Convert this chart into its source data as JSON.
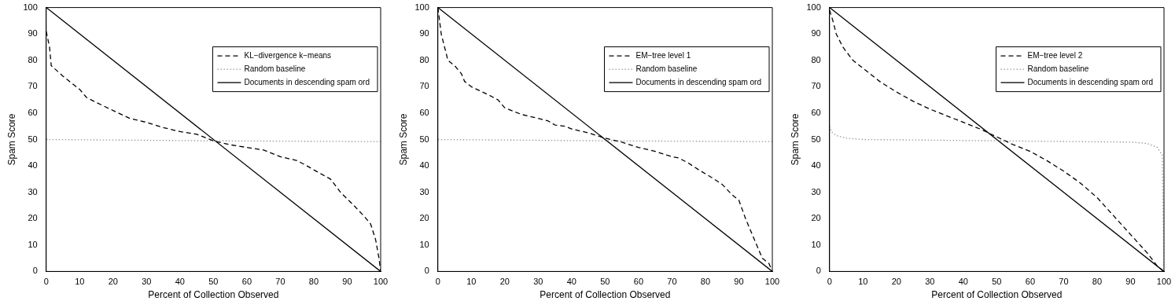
{
  "chart_data": [
    {
      "type": "line",
      "xlabel": "Percent of Collection Observed",
      "ylabel": "Spam Score",
      "xlim": [
        0,
        100
      ],
      "ylim": [
        0,
        100
      ],
      "xticks": [
        0,
        10,
        20,
        30,
        40,
        50,
        60,
        70,
        80,
        90,
        100
      ],
      "yticks": [
        0,
        10,
        20,
        30,
        40,
        50,
        60,
        70,
        80,
        90,
        100
      ],
      "grid": false,
      "legend": "top right",
      "marker": "none",
      "series": [
        {
          "name": "KL−divergence k−means",
          "color": "#000000",
          "line_style": "dashed",
          "x": [
            0,
            1,
            1.5,
            5,
            8,
            10,
            12,
            15,
            20,
            25,
            30,
            35,
            40,
            45,
            50,
            55,
            60,
            65,
            70,
            75,
            78,
            80,
            85,
            88,
            92,
            95,
            97,
            98.5,
            99.5,
            100
          ],
          "values": [
            91,
            85,
            78,
            74,
            71,
            69,
            66,
            64,
            61,
            58,
            56.5,
            54.5,
            53,
            52,
            49.5,
            48,
            47,
            46,
            43.5,
            42,
            40,
            38.5,
            35,
            30,
            25,
            21,
            18,
            12,
            5,
            0
          ]
        },
        {
          "name": "Random baseline",
          "color": "#999999",
          "line_style": "dotted",
          "x": [
            0,
            50,
            100
          ],
          "values": [
            50,
            49.5,
            49.2
          ]
        },
        {
          "name": "Documents in descending spam ord",
          "color": "#000000",
          "line_style": "solid",
          "x": [
            0,
            100
          ],
          "values": [
            100,
            0
          ]
        }
      ]
    },
    {
      "type": "line",
      "xlabel": "Percent of Collection Observed",
      "ylabel": "Spam Score",
      "xlim": [
        0,
        100
      ],
      "ylim": [
        0,
        100
      ],
      "xticks": [
        0,
        10,
        20,
        30,
        40,
        50,
        60,
        70,
        80,
        90,
        100
      ],
      "yticks": [
        0,
        10,
        20,
        30,
        40,
        50,
        60,
        70,
        80,
        90,
        100
      ],
      "grid": false,
      "legend": "top right",
      "marker": "none",
      "series": [
        {
          "name": "EM−tree level 1",
          "color": "#000000",
          "line_style": "dashed",
          "x": [
            0,
            0.5,
            1,
            2,
            3,
            5,
            7,
            8,
            10,
            15,
            18,
            20,
            22,
            25,
            30,
            33,
            35,
            38,
            40,
            45,
            50,
            55,
            60,
            65,
            70,
            72,
            75,
            78,
            82,
            85,
            88,
            90,
            92,
            95,
            97,
            99,
            100
          ],
          "values": [
            100,
            95,
            90,
            85,
            80,
            78,
            75,
            72,
            70,
            67,
            65,
            62,
            61,
            59.5,
            58,
            57,
            55.5,
            55,
            54,
            52.5,
            50.5,
            49,
            47,
            45.5,
            43.5,
            43,
            41,
            38.5,
            35.5,
            33,
            29,
            27,
            20,
            11,
            5,
            3,
            0
          ]
        },
        {
          "name": "Random baseline",
          "color": "#999999",
          "line_style": "dotted",
          "x": [
            0,
            50,
            100
          ],
          "values": [
            50,
            49.5,
            49.2
          ]
        },
        {
          "name": "Documents in descending spam ord",
          "color": "#000000",
          "line_style": "solid",
          "x": [
            0,
            100
          ],
          "values": [
            100,
            0
          ]
        }
      ]
    },
    {
      "type": "line",
      "xlabel": "Percent of Collection Observed",
      "ylabel": "Spam Score",
      "xlim": [
        0,
        100
      ],
      "ylim": [
        0,
        100
      ],
      "xticks": [
        0,
        10,
        20,
        30,
        40,
        50,
        60,
        70,
        80,
        90,
        100
      ],
      "yticks": [
        0,
        10,
        20,
        30,
        40,
        50,
        60,
        70,
        80,
        90,
        100
      ],
      "grid": false,
      "legend": "top right",
      "marker": "none",
      "series": [
        {
          "name": "EM−tree level 2",
          "color": "#000000",
          "line_style": "dashed",
          "x": [
            0,
            1,
            2,
            4,
            7,
            10,
            15,
            20,
            25,
            30,
            35,
            40,
            45,
            50,
            55,
            60,
            65,
            70,
            75,
            80,
            85,
            90,
            95,
            98,
            100
          ],
          "values": [
            99,
            95,
            90,
            85,
            80,
            77,
            72,
            68,
            64.5,
            61.5,
            59,
            56.5,
            54,
            51,
            48,
            45.5,
            42,
            38,
            33.5,
            28,
            21,
            14,
            7,
            2,
            0
          ]
        },
        {
          "name": "Random baseline",
          "color": "#999999",
          "line_style": "dotted",
          "x": [
            0,
            0.5,
            2,
            5,
            10,
            50,
            90,
            95,
            98,
            99.5,
            100
          ],
          "values": [
            55,
            53,
            51.5,
            50.5,
            50,
            49.5,
            49,
            48.5,
            47,
            44,
            0
          ]
        },
        {
          "name": "Documents in descending spam ord",
          "color": "#000000",
          "line_style": "solid",
          "x": [
            0,
            100
          ],
          "values": [
            100,
            0
          ]
        }
      ]
    }
  ]
}
